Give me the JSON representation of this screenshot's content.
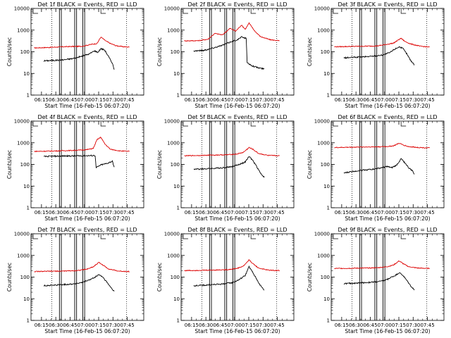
{
  "chart_data": {
    "type": "line",
    "grid": false,
    "legend": "none",
    "colors": {
      "events": "#000000",
      "lld": "#dd0000",
      "axes": "#000000"
    },
    "y_scale": "log",
    "ylim": [
      1,
      10000
    ],
    "y_ticks": [
      "1",
      "10",
      "100",
      "1000",
      "10000"
    ],
    "ylabel": "Counts/sec",
    "xlabel": "Start Time (16-Feb-15 06:07:20)",
    "x_range_minutes_after_start": [
      -3.33,
      115.0
    ],
    "x_ticks": [
      {
        "label": "06:15",
        "min": 7.67
      },
      {
        "label": "06:30",
        "min": 22.67
      },
      {
        "label": "06:45",
        "min": 37.67
      },
      {
        "label": "07:00",
        "min": 52.67
      },
      {
        "label": "07:15",
        "min": 67.67
      },
      {
        "label": "07:30",
        "min": 82.67
      },
      {
        "label": "07:45",
        "min": 97.67
      }
    ],
    "dotted_time_markers_min": [
      18.5,
      97.0
    ],
    "solid_time_markers_min": [
      [
        26.5,
        28.5
      ],
      [
        42.5,
        44.5
      ],
      [
        51.0,
        53.0
      ]
    ],
    "panels": [
      {
        "title": "Det 1f BLACK = Events, RED = LLD",
        "red": [
          [
            0,
            150
          ],
          [
            15,
            158
          ],
          [
            30,
            170
          ],
          [
            40,
            175
          ],
          [
            50,
            178
          ],
          [
            60,
            220
          ],
          [
            66,
            240
          ],
          [
            70,
            480
          ],
          [
            75,
            320
          ],
          [
            80,
            240
          ],
          [
            86,
            190
          ],
          [
            94,
            170
          ],
          [
            100,
            165
          ]
        ],
        "black": [
          [
            10,
            38
          ],
          [
            20,
            40
          ],
          [
            30,
            42
          ],
          [
            40,
            48
          ],
          [
            50,
            62
          ],
          [
            58,
            80
          ],
          [
            63,
            110
          ],
          [
            67,
            95
          ],
          [
            70,
            140
          ],
          [
            74,
            120
          ],
          [
            78,
            60
          ],
          [
            82,
            30
          ],
          [
            84,
            15
          ]
        ]
      },
      {
        "title": "Det 2f BLACK = Events, RED = LLD",
        "red": [
          [
            0,
            320
          ],
          [
            15,
            325
          ],
          [
            25,
            380
          ],
          [
            32,
            700
          ],
          [
            40,
            600
          ],
          [
            48,
            1200
          ],
          [
            54,
            900
          ],
          [
            60,
            1700
          ],
          [
            64,
            1100
          ],
          [
            68,
            2100
          ],
          [
            74,
            900
          ],
          [
            80,
            500
          ],
          [
            90,
            360
          ],
          [
            100,
            320
          ]
        ],
        "black": [
          [
            10,
            110
          ],
          [
            20,
            115
          ],
          [
            28,
            140
          ],
          [
            40,
            200
          ],
          [
            50,
            300
          ],
          [
            56,
            360
          ],
          [
            60,
            480
          ],
          [
            65,
            420
          ],
          [
            66,
            30
          ],
          [
            72,
            22
          ],
          [
            78,
            18
          ],
          [
            84,
            16
          ]
        ]
      },
      {
        "title": "Det 3f BLACK = Events, RED = LLD",
        "red": [
          [
            0,
            170
          ],
          [
            15,
            175
          ],
          [
            30,
            180
          ],
          [
            45,
            185
          ],
          [
            55,
            220
          ],
          [
            62,
            250
          ],
          [
            70,
            420
          ],
          [
            74,
            300
          ],
          [
            80,
            230
          ],
          [
            90,
            180
          ],
          [
            100,
            165
          ]
        ],
        "black": [
          [
            10,
            52
          ],
          [
            20,
            55
          ],
          [
            30,
            58
          ],
          [
            40,
            62
          ],
          [
            50,
            70
          ],
          [
            58,
            90
          ],
          [
            63,
            130
          ],
          [
            68,
            170
          ],
          [
            72,
            140
          ],
          [
            76,
            80
          ],
          [
            80,
            40
          ],
          [
            84,
            25
          ]
        ]
      },
      {
        "title": "Det 4f BLACK = Events, RED = LLD",
        "red": [
          [
            0,
            400
          ],
          [
            15,
            410
          ],
          [
            30,
            430
          ],
          [
            45,
            450
          ],
          [
            55,
            480
          ],
          [
            62,
            550
          ],
          [
            66,
            1400
          ],
          [
            70,
            1800
          ],
          [
            74,
            900
          ],
          [
            80,
            500
          ],
          [
            90,
            420
          ],
          [
            100,
            400
          ]
        ],
        "black": [
          [
            10,
            230
          ],
          [
            20,
            240
          ],
          [
            30,
            245
          ],
          [
            40,
            245
          ],
          [
            50,
            250
          ],
          [
            60,
            255
          ],
          [
            64,
            260
          ],
          [
            65,
            70
          ],
          [
            70,
            95
          ],
          [
            76,
            110
          ],
          [
            82,
            140
          ],
          [
            84,
            75
          ]
        ]
      },
      {
        "title": "Det 5f BLACK = Events, RED = LLD",
        "red": [
          [
            0,
            250
          ],
          [
            15,
            260
          ],
          [
            30,
            270
          ],
          [
            45,
            280
          ],
          [
            55,
            300
          ],
          [
            62,
            360
          ],
          [
            68,
            600
          ],
          [
            72,
            500
          ],
          [
            78,
            320
          ],
          [
            88,
            260
          ],
          [
            100,
            250
          ]
        ],
        "black": [
          [
            10,
            60
          ],
          [
            20,
            62
          ],
          [
            30,
            65
          ],
          [
            40,
            70
          ],
          [
            50,
            80
          ],
          [
            56,
            95
          ],
          [
            60,
            110
          ],
          [
            64,
            130
          ],
          [
            68,
            230
          ],
          [
            72,
            150
          ],
          [
            76,
            80
          ],
          [
            80,
            40
          ],
          [
            84,
            25
          ]
        ]
      },
      {
        "title": "Det 6f BLACK = Events, RED = LLD",
        "red": [
          [
            0,
            600
          ],
          [
            15,
            620
          ],
          [
            30,
            640
          ],
          [
            45,
            650
          ],
          [
            55,
            670
          ],
          [
            62,
            720
          ],
          [
            68,
            950
          ],
          [
            72,
            800
          ],
          [
            78,
            660
          ],
          [
            90,
            600
          ],
          [
            100,
            580
          ]
        ],
        "black": [
          [
            10,
            40
          ],
          [
            20,
            48
          ],
          [
            30,
            55
          ],
          [
            40,
            60
          ],
          [
            50,
            70
          ],
          [
            55,
            80
          ],
          [
            60,
            70
          ],
          [
            65,
            90
          ],
          [
            70,
            180
          ],
          [
            74,
            120
          ],
          [
            78,
            70
          ],
          [
            82,
            50
          ],
          [
            84,
            35
          ]
        ]
      },
      {
        "title": "Det 7f BLACK = Events, RED = LLD",
        "red": [
          [
            0,
            180
          ],
          [
            15,
            185
          ],
          [
            30,
            190
          ],
          [
            45,
            200
          ],
          [
            55,
            230
          ],
          [
            62,
            300
          ],
          [
            68,
            480
          ],
          [
            72,
            360
          ],
          [
            78,
            240
          ],
          [
            88,
            190
          ],
          [
            100,
            180
          ]
        ],
        "black": [
          [
            10,
            40
          ],
          [
            20,
            42
          ],
          [
            30,
            45
          ],
          [
            40,
            48
          ],
          [
            50,
            55
          ],
          [
            56,
            70
          ],
          [
            60,
            80
          ],
          [
            64,
            100
          ],
          [
            68,
            130
          ],
          [
            72,
            100
          ],
          [
            76,
            60
          ],
          [
            80,
            35
          ],
          [
            84,
            22
          ]
        ]
      },
      {
        "title": "Det 8f BLACK = Events, RED = LLD",
        "red": [
          [
            0,
            200
          ],
          [
            15,
            205
          ],
          [
            30,
            210
          ],
          [
            45,
            220
          ],
          [
            55,
            250
          ],
          [
            62,
            320
          ],
          [
            68,
            620
          ],
          [
            72,
            420
          ],
          [
            78,
            260
          ],
          [
            88,
            210
          ],
          [
            100,
            200
          ]
        ],
        "black": [
          [
            10,
            40
          ],
          [
            20,
            42
          ],
          [
            30,
            45
          ],
          [
            40,
            48
          ],
          [
            50,
            55
          ],
          [
            56,
            70
          ],
          [
            60,
            90
          ],
          [
            64,
            120
          ],
          [
            68,
            300
          ],
          [
            72,
            160
          ],
          [
            76,
            80
          ],
          [
            80,
            40
          ],
          [
            84,
            25
          ]
        ]
      },
      {
        "title": "Det 9f BLACK = Events, RED = LLD",
        "red": [
          [
            0,
            250
          ],
          [
            15,
            255
          ],
          [
            30,
            260
          ],
          [
            45,
            270
          ],
          [
            55,
            300
          ],
          [
            62,
            360
          ],
          [
            68,
            560
          ],
          [
            72,
            420
          ],
          [
            78,
            300
          ],
          [
            88,
            260
          ],
          [
            100,
            250
          ]
        ],
        "black": [
          [
            10,
            50
          ],
          [
            20,
            52
          ],
          [
            30,
            55
          ],
          [
            40,
            58
          ],
          [
            50,
            65
          ],
          [
            56,
            80
          ],
          [
            60,
            100
          ],
          [
            64,
            120
          ],
          [
            68,
            160
          ],
          [
            72,
            120
          ],
          [
            76,
            70
          ],
          [
            80,
            40
          ],
          [
            84,
            25
          ]
        ]
      }
    ]
  }
}
